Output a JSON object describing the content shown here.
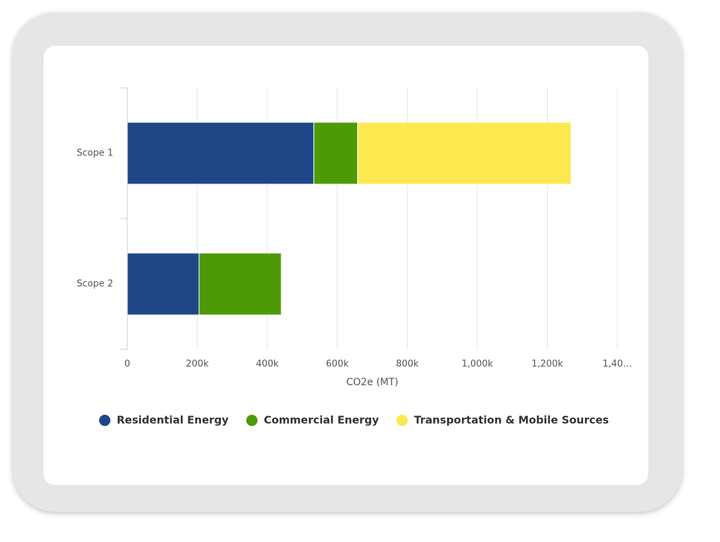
{
  "chart_data": {
    "type": "bar",
    "orientation": "horizontal",
    "stacked": true,
    "categories": [
      "Scope 1",
      "Scope 2"
    ],
    "series": [
      {
        "name": "Residential Energy",
        "color": "#1f4788",
        "values": [
          533000,
          205000
        ]
      },
      {
        "name": "Commercial Energy",
        "color": "#4e9a06",
        "values": [
          125000,
          235000
        ]
      },
      {
        "name": "Transportation & Mobile Sources",
        "color": "#fce94f",
        "values": [
          610000,
          null
        ]
      }
    ],
    "x_label": "CO2e (MT)",
    "xlim": [
      0,
      1400000
    ],
    "xticks": [
      0,
      {
        "value": 200000,
        "label": "200k"
      },
      {
        "value": 400000,
        "label": "400k"
      },
      {
        "value": 600000,
        "label": "600k"
      },
      {
        "value": 800000,
        "label": "800k"
      },
      {
        "value": 1000000,
        "label": "1,000k"
      },
      {
        "value": 1200000,
        "label": "1,200k"
      },
      {
        "value": 1400000,
        "label": "1,40…"
      }
    ],
    "grid": true,
    "legend": "bottom"
  }
}
